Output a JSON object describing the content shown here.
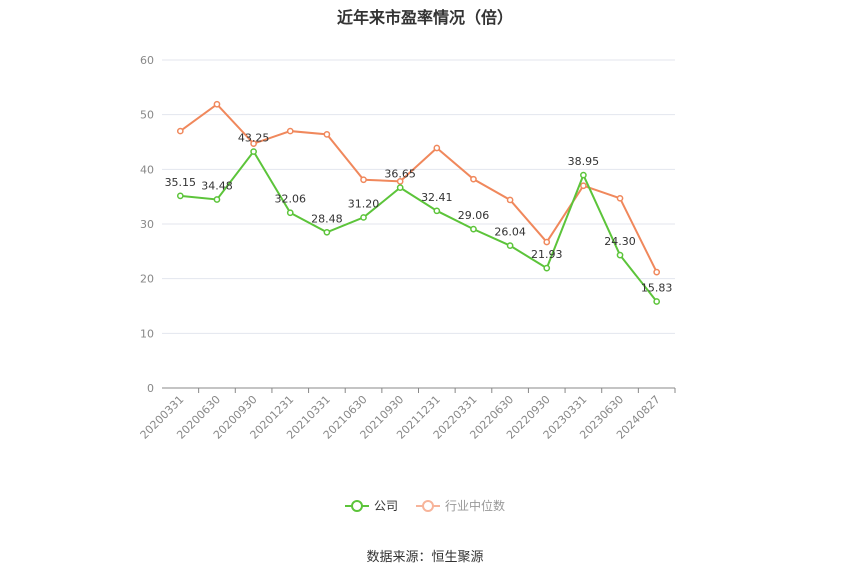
{
  "title": "近年来市盈率情况（倍）",
  "source": "数据来源：恒生聚源",
  "chart_data": {
    "type": "line",
    "title": "近年来市盈率情况（倍）",
    "categories": [
      "20200331",
      "20200630",
      "20200930",
      "20201231",
      "20210331",
      "20210630",
      "20210930",
      "20211231",
      "20220331",
      "20220630",
      "20220930",
      "20230331",
      "20230630",
      "20240827"
    ],
    "ylim": [
      0,
      60
    ],
    "yticks": [
      0,
      10,
      20,
      30,
      40,
      50,
      60
    ],
    "grid": true,
    "legend_position": "bottom",
    "series": [
      {
        "name": "公司",
        "color": "#5cc43a",
        "values": [
          35.15,
          34.48,
          43.25,
          32.06,
          28.48,
          31.2,
          36.65,
          32.41,
          29.06,
          26.04,
          21.93,
          38.95,
          24.3,
          15.83
        ],
        "labels": [
          "35.15",
          "34.48",
          "43.25",
          "32.06",
          "28.48",
          "31.20",
          "36.65",
          "32.41",
          "29.06",
          "26.04",
          "21.93",
          "38.95",
          "24.30",
          "15.83"
        ]
      },
      {
        "name": "行业中位数",
        "color": "#f0885c",
        "values": [
          47.0,
          51.9,
          44.7,
          47.0,
          46.4,
          38.1,
          37.8,
          43.9,
          38.2,
          34.4,
          26.7,
          37.0,
          34.7,
          21.2
        ]
      }
    ]
  }
}
